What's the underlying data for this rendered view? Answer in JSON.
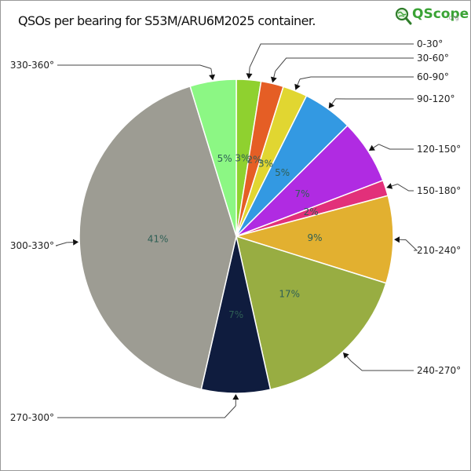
{
  "header": {
    "title": "QSOs per bearing for S53M/ARU6M2025 container."
  },
  "logo": {
    "text": "QScope",
    "suffix": ".org",
    "icon": "magnifier-globe-icon"
  },
  "chart_data": {
    "type": "pie",
    "title": "QSOs per bearing for S53M/ARU6M2025 container.",
    "slices": [
      {
        "label": "0-30°",
        "pct_text": "3%",
        "value": 2.5,
        "color": "#8fd12f"
      },
      {
        "label": "30-60°",
        "pct_text": "2%",
        "value": 2.3,
        "color": "#e55e25"
      },
      {
        "label": "60-90°",
        "pct_text": "3%",
        "value": 2.5,
        "color": "#e1d631"
      },
      {
        "label": "90-120°",
        "pct_text": "5%",
        "value": 5.1,
        "color": "#3399e2"
      },
      {
        "label": "120-150°",
        "pct_text": "7%",
        "value": 6.6,
        "color": "#b02be2"
      },
      {
        "label": "150-180°",
        "pct_text": "2%",
        "value": 1.6,
        "color": "#e2307a"
      },
      {
        "label": "210-240°",
        "pct_text": "9%",
        "value": 8.9,
        "color": "#e2b030"
      },
      {
        "label": "240-270°",
        "pct_text": "17%",
        "value": 16.5,
        "color": "#98ad42"
      },
      {
        "label": "270-300°",
        "pct_text": "7%",
        "value": 7.0,
        "color": "#0f1c3e"
      },
      {
        "label": "300-330°",
        "pct_text": "41%",
        "value": 41.2,
        "color": "#9d9c93"
      },
      {
        "label": "330-360°",
        "pct_text": "5%",
        "value": 4.7,
        "color": "#8cf784"
      }
    ],
    "start": "12 o'clock",
    "direction": "clockwise",
    "legend": "callout labels around pie"
  }
}
